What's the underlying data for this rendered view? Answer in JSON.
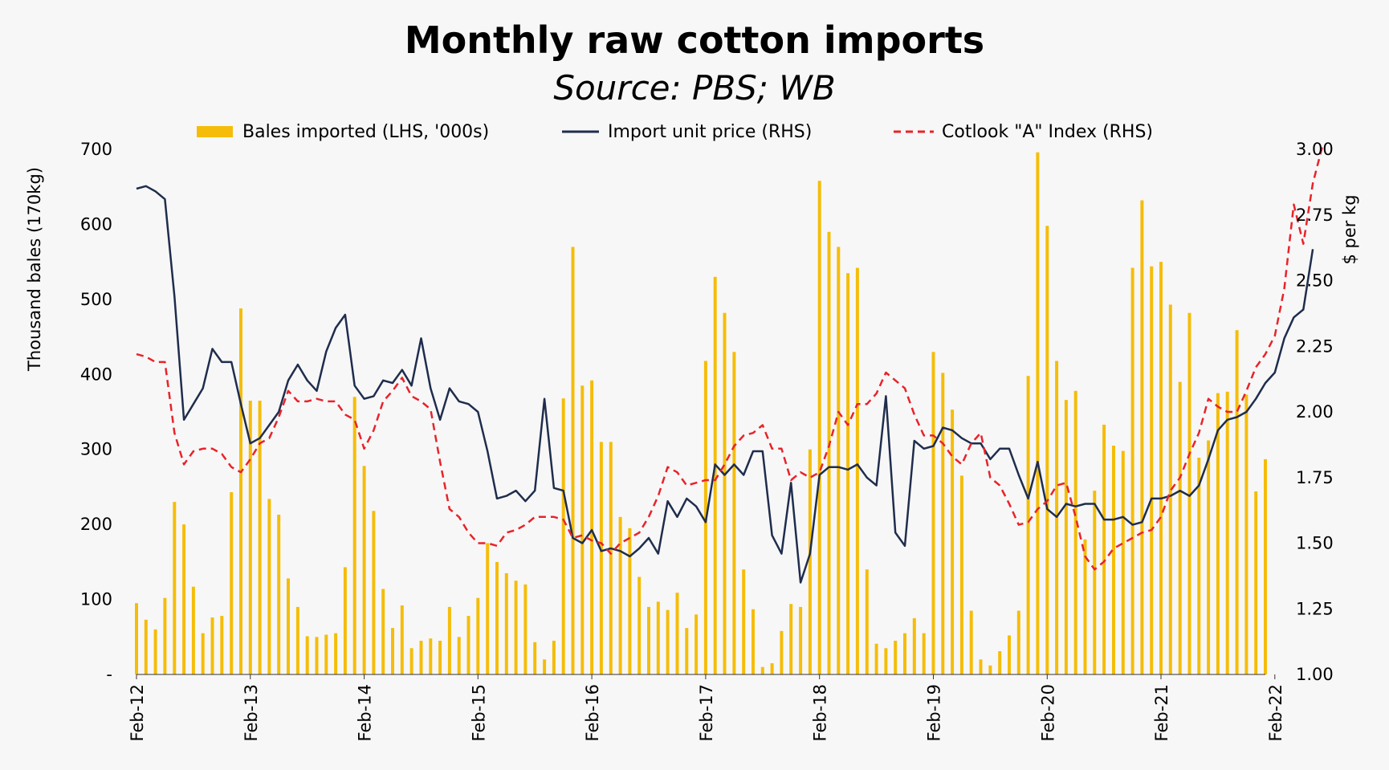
{
  "chart_data": {
    "type": "bar+line",
    "title": "Monthly raw cotton imports",
    "subtitle": "Source: PBS; WB",
    "ylabel": "Thousand bales  (170kg)",
    "y2label": "$ per kg",
    "ylim": [
      0,
      700
    ],
    "y2lim": [
      1.0,
      3.0
    ],
    "y_ticks": [
      "-",
      "100",
      "200",
      "300",
      "400",
      "500",
      "600",
      "700"
    ],
    "y2_ticks": [
      "1.00",
      "1.25",
      "1.50",
      "1.75",
      "2.00",
      "2.25",
      "2.50",
      "2.75",
      "3.00"
    ],
    "x_ticks": [
      "Feb-12",
      "Feb-13",
      "Feb-14",
      "Feb-15",
      "Feb-16",
      "Feb-17",
      "Feb-18",
      "Feb-19",
      "Feb-20",
      "Feb-21",
      "Feb-22"
    ],
    "x_start": "Feb-12",
    "x_end": "Feb-22",
    "legend": {
      "placement": "top"
    },
    "colors": {
      "bars": "#f5bd0a",
      "import_price": "#1f2d4d",
      "cotlook": "#e8232a"
    },
    "series": [
      {
        "name": "Bales imported (LHS, '000s)",
        "kind": "bar",
        "axis": "left",
        "values": [
          95,
          73,
          60,
          102,
          230,
          200,
          117,
          55,
          76,
          78,
          243,
          488,
          365,
          365,
          234,
          213,
          128,
          90,
          51,
          50,
          53,
          55,
          143,
          370,
          278,
          218,
          114,
          62,
          92,
          35,
          45,
          48,
          45,
          90,
          50,
          78,
          102,
          175,
          150,
          135,
          125,
          120,
          43,
          20,
          45,
          368,
          570,
          385,
          392,
          310,
          310,
          210,
          195,
          130,
          90,
          97,
          86,
          109,
          62,
          80,
          418,
          530,
          482,
          430,
          140,
          87,
          10,
          15,
          58,
          94,
          90,
          300,
          658,
          590,
          570,
          535,
          542,
          140,
          41,
          35,
          45,
          55,
          75,
          55,
          430,
          402,
          353,
          265,
          85,
          20,
          12,
          31,
          52,
          85,
          398,
          696,
          598,
          418,
          366,
          378,
          180,
          245,
          333,
          305,
          298,
          542,
          632,
          544,
          550,
          493,
          390,
          482,
          289,
          312,
          375,
          377,
          459,
          373,
          244,
          287
        ]
      },
      {
        "name": "Import unit price (RHS)",
        "kind": "line",
        "axis": "right",
        "values": [
          2.85,
          2.86,
          2.84,
          2.81,
          2.44,
          1.97,
          2.03,
          2.09,
          2.24,
          2.19,
          2.19,
          2.03,
          1.88,
          1.9,
          1.95,
          2.0,
          2.12,
          2.18,
          2.12,
          2.08,
          2.23,
          2.32,
          2.37,
          2.1,
          2.05,
          2.06,
          2.12,
          2.11,
          2.16,
          2.1,
          2.28,
          2.09,
          1.97,
          2.09,
          2.04,
          2.03,
          2.0,
          1.85,
          1.67,
          1.68,
          1.7,
          1.66,
          1.7,
          2.05,
          1.71,
          1.7,
          1.52,
          1.5,
          1.55,
          1.47,
          1.48,
          1.47,
          1.45,
          1.48,
          1.52,
          1.46,
          1.66,
          1.6,
          1.67,
          1.64,
          1.58,
          1.8,
          1.76,
          1.8,
          1.76,
          1.85,
          1.85,
          1.53,
          1.46,
          1.73,
          1.35,
          1.46,
          1.76,
          1.79,
          1.79,
          1.78,
          1.8,
          1.75,
          1.72,
          2.06,
          1.54,
          1.49,
          1.89,
          1.86,
          1.87,
          1.94,
          1.93,
          1.9,
          1.88,
          1.88,
          1.82,
          1.86,
          1.86,
          1.76,
          1.67,
          1.81,
          1.63,
          1.6,
          1.65,
          1.64,
          1.65,
          1.65,
          1.59,
          1.59,
          1.6,
          1.57,
          1.58,
          1.67,
          1.67,
          1.68,
          1.7,
          1.68,
          1.72,
          1.82,
          1.93,
          1.97,
          1.98,
          2.0,
          2.05,
          2.11,
          2.15,
          2.28,
          2.36,
          2.39,
          2.62
        ]
      },
      {
        "name": "Cotlook \"A\" Index (RHS)",
        "kind": "line",
        "dashed": true,
        "axis": "right",
        "values": [
          2.22,
          2.21,
          2.19,
          2.19,
          1.92,
          1.8,
          1.85,
          1.86,
          1.86,
          1.84,
          1.79,
          1.77,
          1.82,
          1.88,
          1.9,
          1.98,
          2.08,
          2.04,
          2.04,
          2.05,
          2.04,
          2.04,
          1.99,
          1.97,
          1.86,
          1.93,
          2.04,
          2.08,
          2.13,
          2.06,
          2.04,
          2.01,
          1.81,
          1.63,
          1.6,
          1.54,
          1.5,
          1.5,
          1.49,
          1.54,
          1.55,
          1.57,
          1.6,
          1.6,
          1.6,
          1.59,
          1.52,
          1.53,
          1.51,
          1.5,
          1.46,
          1.5,
          1.52,
          1.54,
          1.6,
          1.68,
          1.79,
          1.77,
          1.72,
          1.73,
          1.74,
          1.74,
          1.8,
          1.87,
          1.91,
          1.92,
          1.95,
          1.86,
          1.86,
          1.74,
          1.77,
          1.75,
          1.77,
          1.87,
          2.0,
          1.95,
          2.03,
          2.03,
          2.07,
          2.15,
          2.12,
          2.09,
          1.99,
          1.91,
          1.91,
          1.88,
          1.83,
          1.8,
          1.88,
          1.92,
          1.75,
          1.72,
          1.65,
          1.57,
          1.58,
          1.63,
          1.66,
          1.72,
          1.73,
          1.6,
          1.45,
          1.4,
          1.43,
          1.48,
          1.5,
          1.52,
          1.54,
          1.55,
          1.6,
          1.7,
          1.75,
          1.84,
          1.92,
          2.05,
          2.02,
          2.0,
          2.0,
          2.08,
          2.17,
          2.22,
          2.29,
          2.47,
          2.79,
          2.64,
          2.87,
          3.01
        ]
      }
    ]
  }
}
